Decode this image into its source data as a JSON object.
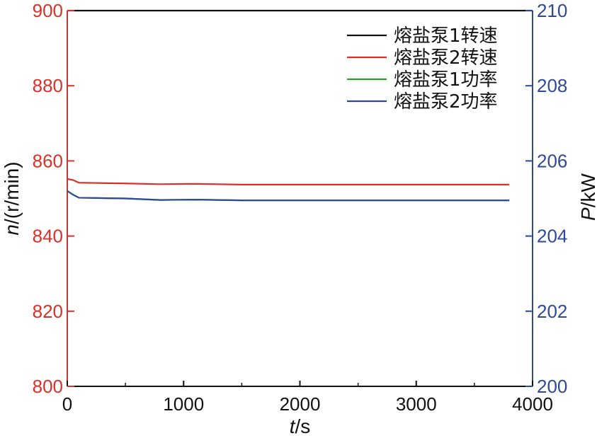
{
  "chart_data": {
    "type": "line",
    "x_axis": {
      "label_var": "t",
      "label_unit": "/s",
      "range": [
        0,
        4000
      ],
      "ticks": [
        0,
        1000,
        2000,
        3000,
        4000
      ]
    },
    "y_axis_left": {
      "label_var": "n",
      "label_unit": "/(r/min)",
      "range": [
        800,
        900
      ],
      "ticks": [
        800,
        820,
        840,
        860,
        880,
        900
      ],
      "color": "#d9312a"
    },
    "y_axis_right": {
      "label_var": "P",
      "label_unit": "/kW",
      "range": [
        200,
        210
      ],
      "ticks": [
        200,
        202,
        204,
        206,
        208,
        210
      ],
      "color": "#2e4a94"
    },
    "legend_position": "top-right",
    "grid": false,
    "series": [
      {
        "name": "熔盐泵1转速",
        "axis": "left",
        "color": "#111111",
        "x": [
          0,
          4000
        ],
        "y": [
          900,
          900
        ]
      },
      {
        "name": "熔盐泵2转速",
        "axis": "left",
        "color": "#d9312a",
        "x": [
          0,
          50,
          100,
          300,
          500,
          800,
          1100,
          1500,
          2000,
          2500,
          3000,
          3500,
          3800
        ],
        "y": [
          855.2,
          854.9,
          854.2,
          854.1,
          854.0,
          853.8,
          853.9,
          853.7,
          853.7,
          853.7,
          853.7,
          853.7,
          853.7
        ]
      },
      {
        "name": "熔盐泵1功率",
        "axis": "right",
        "color": "#2aa02a",
        "x": [
          0,
          50,
          100,
          300,
          500,
          800,
          1100,
          1500,
          2000,
          2500,
          3000,
          3500,
          3800
        ],
        "y": [
          205.2,
          205.1,
          205.02,
          205.01,
          205.0,
          204.96,
          204.97,
          204.95,
          204.95,
          204.95,
          204.95,
          204.95,
          204.95
        ]
      },
      {
        "name": "熔盐泵2功率",
        "axis": "right",
        "color": "#2e4a94",
        "x": [
          0,
          50,
          100,
          300,
          500,
          800,
          1100,
          1500,
          2000,
          2500,
          3000,
          3500,
          3800
        ],
        "y": [
          205.2,
          205.1,
          205.02,
          205.01,
          205.0,
          204.96,
          204.97,
          204.95,
          204.95,
          204.95,
          204.95,
          204.95,
          204.95
        ]
      }
    ]
  }
}
